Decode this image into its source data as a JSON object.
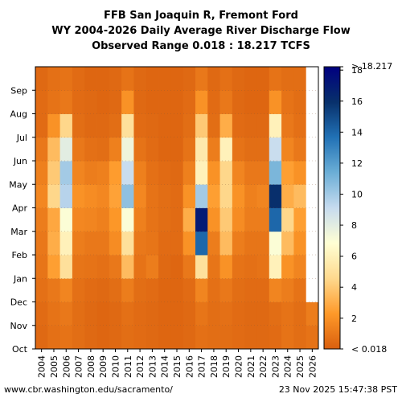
{
  "title_lines": [
    "FFB San Joaquin R, Fremont Ford",
    "WY 2004-2026 Daily Average River Discharge Flow",
    "Observed Range 0.018 : 18.217 TCFS"
  ],
  "footer": {
    "source": "www.cbr.washington.edu/sacramento/",
    "timestamp": "23 Nov 2025 15:47:38 PST"
  },
  "chart_data": {
    "type": "heatmap",
    "x_label": "",
    "y_label": "",
    "years": [
      "2004",
      "2005",
      "2006",
      "2007",
      "2008",
      "2009",
      "2010",
      "2011",
      "2012",
      "2013",
      "2014",
      "2015",
      "2016",
      "2017",
      "2018",
      "2019",
      "2020",
      "2021",
      "2022",
      "2023",
      "2024",
      "2025",
      "2026"
    ],
    "months": [
      "Oct",
      "Nov",
      "Dec",
      "Jan",
      "Feb",
      "Mar",
      "Apr",
      "May",
      "Jun",
      "Jul",
      "Aug",
      "Sep"
    ],
    "value_units": "TCFS",
    "colorbar": {
      "ticks": [
        2,
        4,
        6,
        8,
        10,
        12,
        14,
        16,
        18
      ],
      "min_label": "< 0.018",
      "max_label": "> 18.217",
      "range": [
        0.018,
        18.217
      ],
      "palette": [
        "#d95f0e",
        "#fe9929",
        "#fed98e",
        "#ffffd4",
        "#c6dbef",
        "#6baed6",
        "#2171b5",
        "#08306b",
        "#000080"
      ]
    },
    "monthly_mean_tcfs": [
      [
        0.4,
        0.5,
        0.7,
        0.9,
        1.0,
        1.2,
        1.6,
        1.3,
        1.0,
        0.5,
        0.5,
        0.4
      ],
      [
        0.7,
        0.8,
        1.0,
        2.5,
        3.0,
        2.8,
        4.5,
        4.0,
        3.5,
        2.0,
        0.8,
        0.7
      ],
      [
        0.8,
        1.0,
        1.5,
        5.0,
        6.0,
        7.0,
        9.5,
        10.0,
        8.0,
        4.5,
        1.0,
        0.8
      ],
      [
        0.6,
        0.6,
        0.7,
        0.9,
        1.2,
        1.6,
        2.0,
        1.5,
        1.0,
        0.6,
        0.5,
        0.5
      ],
      [
        0.4,
        0.4,
        0.5,
        0.8,
        1.0,
        1.5,
        1.8,
        1.2,
        0.7,
        0.4,
        0.4,
        0.3
      ],
      [
        0.3,
        0.3,
        0.4,
        0.7,
        1.0,
        1.3,
        1.6,
        1.3,
        0.6,
        0.4,
        0.3,
        0.3
      ],
      [
        0.4,
        0.4,
        0.6,
        1.0,
        1.8,
        2.2,
        2.6,
        2.4,
        1.3,
        0.6,
        0.4,
        0.4
      ],
      [
        0.6,
        0.7,
        1.2,
        3.5,
        5.0,
        7.0,
        10.5,
        9.0,
        7.5,
        5.0,
        2.0,
        0.8
      ],
      [
        0.5,
        0.5,
        0.6,
        0.8,
        1.0,
        1.3,
        1.6,
        1.3,
        0.8,
        0.5,
        0.4,
        0.4
      ],
      [
        0.4,
        0.4,
        0.5,
        1.2,
        0.9,
        0.8,
        0.8,
        0.7,
        0.5,
        0.4,
        0.3,
        0.3
      ],
      [
        0.3,
        0.3,
        0.3,
        0.4,
        0.5,
        0.6,
        0.6,
        0.5,
        0.3,
        0.3,
        0.3,
        0.3
      ],
      [
        0.3,
        0.3,
        0.3,
        0.3,
        0.5,
        0.5,
        0.5,
        0.4,
        0.3,
        0.3,
        0.3,
        0.3
      ],
      [
        0.4,
        0.4,
        0.5,
        1.0,
        2.0,
        3.0,
        2.0,
        1.3,
        0.8,
        0.6,
        0.5,
        0.4
      ],
      [
        0.7,
        0.9,
        1.5,
        5.0,
        14.0,
        17.0,
        10.0,
        6.0,
        5.5,
        4.0,
        2.0,
        1.0
      ],
      [
        0.6,
        0.6,
        0.7,
        0.9,
        1.2,
        2.0,
        2.5,
        2.0,
        1.2,
        0.6,
        0.5,
        0.4
      ],
      [
        0.6,
        0.7,
        1.0,
        2.0,
        3.5,
        4.0,
        4.5,
        4.5,
        6.0,
        3.0,
        1.0,
        0.7
      ],
      [
        0.5,
        0.5,
        0.6,
        0.8,
        1.2,
        1.8,
        2.0,
        1.5,
        0.8,
        0.5,
        0.4,
        0.4
      ],
      [
        0.4,
        0.4,
        0.5,
        0.7,
        0.9,
        1.2,
        1.3,
        1.0,
        0.6,
        0.4,
        0.3,
        0.3
      ],
      [
        0.4,
        0.4,
        0.5,
        0.8,
        0.9,
        1.2,
        1.5,
        1.0,
        0.6,
        0.4,
        0.3,
        0.3
      ],
      [
        0.5,
        0.6,
        1.5,
        6.0,
        7.0,
        14.0,
        16.0,
        11.0,
        9.0,
        6.0,
        2.0,
        0.8
      ],
      [
        0.8,
        0.8,
        1.2,
        2.0,
        3.5,
        4.5,
        3.0,
        2.5,
        1.5,
        1.0,
        0.8,
        0.6
      ],
      [
        0.6,
        0.6,
        0.8,
        1.5,
        2.0,
        2.5,
        3.5,
        2.0,
        1.0,
        0.7,
        0.6,
        0.6
      ],
      [
        0.8,
        1.2,
        null,
        null,
        null,
        null,
        null,
        null,
        null,
        null,
        null,
        null
      ]
    ]
  }
}
